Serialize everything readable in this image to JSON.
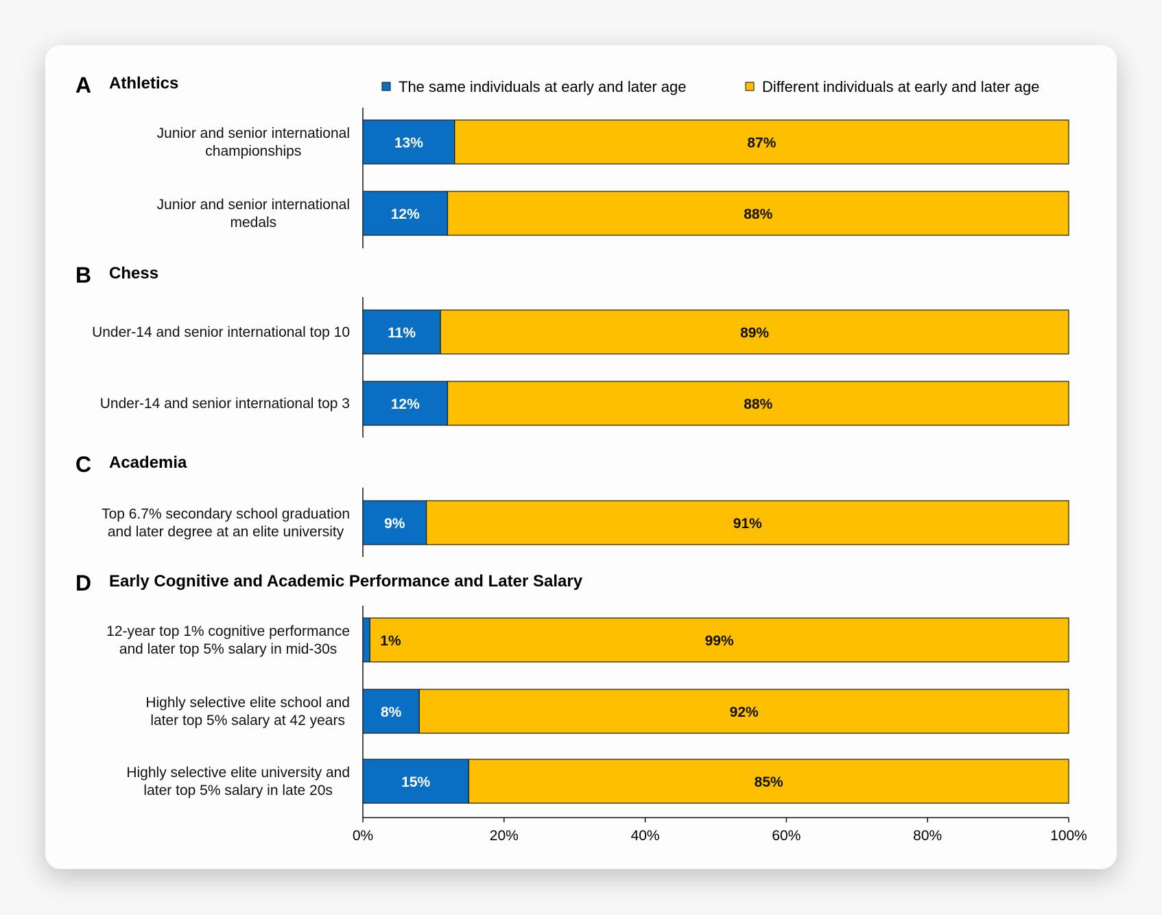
{
  "chart_data": {
    "type": "bar",
    "orientation": "horizontal",
    "stacked": true,
    "legend": {
      "position": "top",
      "entries": [
        {
          "name": "The same individuals at early and later age",
          "color": "#0a6fc2"
        },
        {
          "name": "Different individuals at early and later age",
          "color": "#fdbf00"
        }
      ]
    },
    "xlim": [
      0,
      100
    ],
    "xticks": [
      "0%",
      "20%",
      "40%",
      "60%",
      "80%",
      "100%"
    ],
    "grid": false,
    "sections": [
      {
        "letter": "A",
        "title": "Athletics",
        "rows": [
          {
            "label": [
              "Junior and senior international",
              "championships"
            ],
            "same": 13,
            "different": 87,
            "same_label": "13%",
            "different_label": "87%"
          },
          {
            "label": [
              "Junior and senior international",
              "medals"
            ],
            "same": 12,
            "different": 88,
            "same_label": "12%",
            "different_label": "88%"
          }
        ]
      },
      {
        "letter": "B",
        "title": "Chess",
        "rows": [
          {
            "label": [
              "Under-14 and senior international top 10"
            ],
            "same": 11,
            "different": 89,
            "same_label": "11%",
            "different_label": "89%"
          },
          {
            "label": [
              "Under-14 and senior international top 3"
            ],
            "same": 12,
            "different": 88,
            "same_label": "12%",
            "different_label": "88%"
          }
        ]
      },
      {
        "letter": "C",
        "title": "Academia",
        "rows": [
          {
            "label": [
              "Top 6.7% secondary school graduation",
              "and later degree at an elite university"
            ],
            "same": 9,
            "different": 91,
            "same_label": "9%",
            "different_label": "91%"
          }
        ]
      },
      {
        "letter": "D",
        "title": "Early Cognitive and Academic Performance and Later Salary",
        "rows": [
          {
            "label": [
              "12-year top 1% cognitive performance",
              "and later top 5% salary in mid-30s"
            ],
            "same": 1,
            "different": 99,
            "same_label": "1%",
            "different_label": "99%"
          },
          {
            "label": [
              "Highly selective elite school and",
              "later top 5% salary at 42 years"
            ],
            "same": 8,
            "different": 92,
            "same_label": "8%",
            "different_label": "92%"
          },
          {
            "label": [
              "Highly selective elite university and",
              "later top 5% salary in late 20s"
            ],
            "same": 15,
            "different": 85,
            "same_label": "15%",
            "different_label": "85%"
          }
        ]
      }
    ]
  }
}
